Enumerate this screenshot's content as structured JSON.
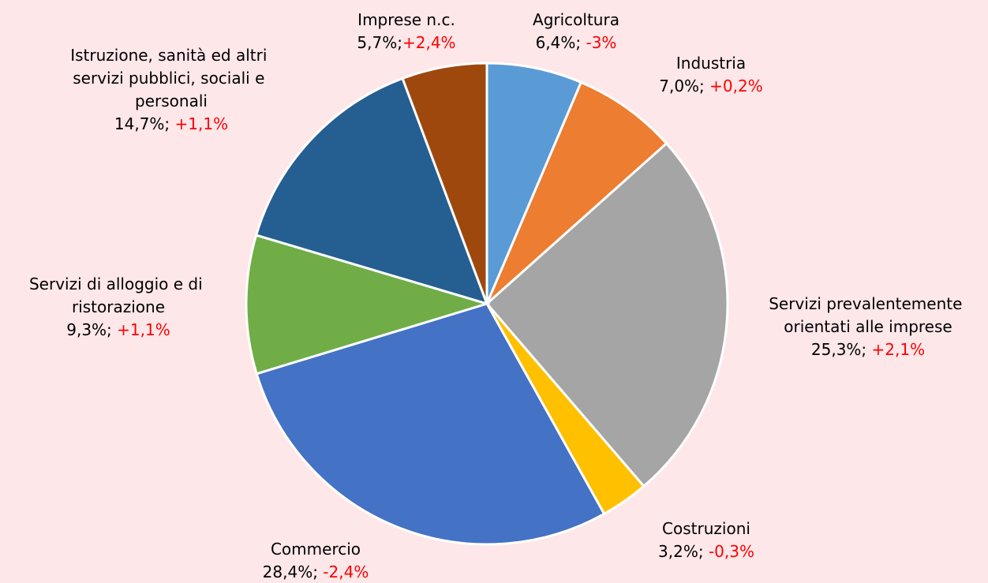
{
  "chart_data": {
    "type": "pie",
    "categories": [
      "Agricoltura",
      "Industria",
      "Servizi prevalentemente orientati alle imprese",
      "Costruzioni",
      "Commercio",
      "Servizi di alloggio e di ristorazione",
      "Istruzione, sanità ed altri servizi pubblici, sociali e personali",
      "Imprese n.c."
    ],
    "values": [
      6.4,
      7.0,
      25.3,
      3.2,
      28.4,
      9.3,
      14.7,
      5.7
    ],
    "value_labels": [
      "6,4%;",
      "7,0%;",
      "25,3%;",
      "3,2%;",
      "28,4%;",
      "9,3%;",
      "14,7%;",
      "5,7%;"
    ],
    "changes": [
      -3,
      0.2,
      2.1,
      -0.3,
      -2.4,
      1.1,
      1.1,
      2.4
    ],
    "change_labels": [
      "-3%",
      "+0,2%",
      "+2,1%",
      "-0,3%",
      "-2,4%",
      "+1,1%",
      "+1,1%",
      "+2,4%"
    ],
    "colors": [
      "#5b9bd5",
      "#ed7d31",
      "#a5a5a5",
      "#ffc000",
      "#4472c4",
      "#70ad47",
      "#255e91",
      "#9e480e"
    ]
  }
}
